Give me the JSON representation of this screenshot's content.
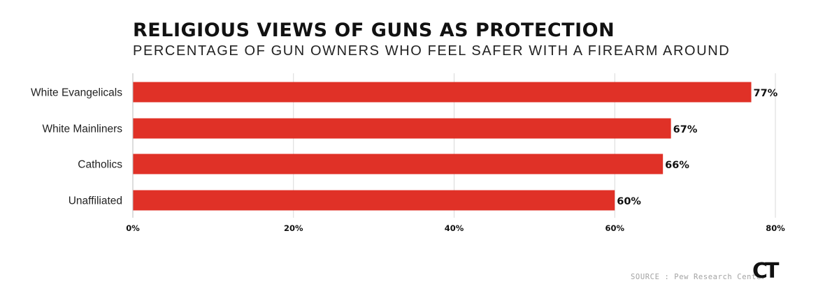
{
  "title": "RELIGIOUS VIEWS OF GUNS AS PROTECTION",
  "subtitle": "PERCENTAGE OF GUN OWNERS WHO FEEL SAFER WITH A FIREARM AROUND",
  "source": "SOURCE : Pew Research Center",
  "logo": "CT",
  "colors": {
    "bar": "#e03127",
    "grid": "#d9d9d9",
    "text": "#111111"
  },
  "chart_data": {
    "type": "bar",
    "orientation": "horizontal",
    "title": "RELIGIOUS VIEWS OF GUNS AS PROTECTION",
    "subtitle": "PERCENTAGE OF GUN OWNERS WHO FEEL SAFER WITH A FIREARM AROUND",
    "categories": [
      "White Evangelicals",
      "White Mainliners",
      "Catholics",
      "Unaffiliated"
    ],
    "values": [
      77,
      67,
      66,
      60
    ],
    "value_labels": [
      "77%",
      "67%",
      "66%",
      "60%"
    ],
    "xlim": [
      0,
      80
    ],
    "xticks": [
      0,
      20,
      40,
      60,
      80
    ],
    "xtick_labels": [
      "0%",
      "20%",
      "40%",
      "60%",
      "80%"
    ],
    "grid": true,
    "legend": false
  }
}
